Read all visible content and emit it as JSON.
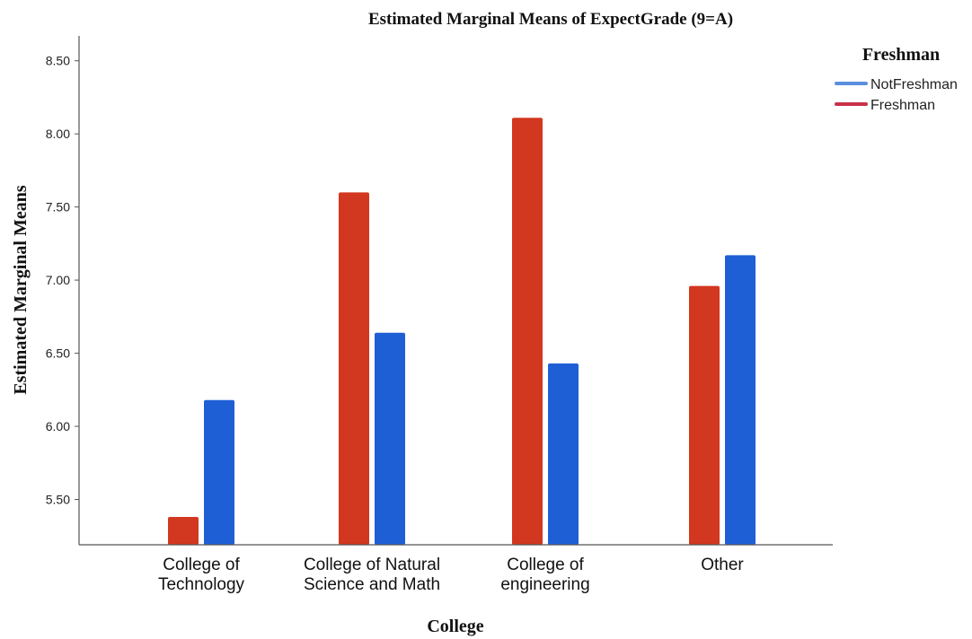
{
  "chart_data": {
    "type": "bar",
    "title": "Estimated Marginal Means of ExpectGrade (9=A)",
    "xlabel": "College",
    "ylabel": "Estimated Marginal Means",
    "categories": [
      [
        "College of",
        "Technology"
      ],
      [
        "College of Natural",
        "Science and Math"
      ],
      [
        "College of",
        "engineering"
      ],
      [
        "Other"
      ]
    ],
    "series": [
      {
        "name": "Freshman",
        "color": "#d2371f",
        "legend_color": "#c8324a",
        "values": [
          5.38,
          7.6,
          8.11,
          6.96
        ]
      },
      {
        "name": "NotFreshman",
        "color": "#1f5fd6",
        "legend_color": "#5b8fe0",
        "values": [
          6.18,
          6.64,
          6.43,
          7.17
        ]
      }
    ],
    "ylim": [
      5.19,
      8.67
    ],
    "yticks": [
      "5.50",
      "6.00",
      "6.50",
      "7.00",
      "7.50",
      "8.00",
      "8.50"
    ],
    "legend": {
      "title": "Freshman",
      "position": "top-right",
      "order": [
        "NotFreshman",
        "Freshman"
      ]
    }
  }
}
